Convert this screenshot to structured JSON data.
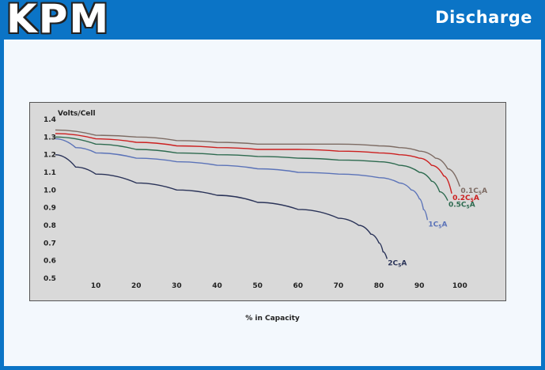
{
  "header": {
    "logo": "KPM",
    "title": "Discharge"
  },
  "chart_data": {
    "type": "line",
    "ylabel": "Volts/Cell",
    "xlabel": "% in Capacity",
    "y_ticks": [
      "1.4",
      "1.3",
      "1.2",
      "1.1",
      "1.0",
      "0.9",
      "0.8",
      "0.7",
      "0.6",
      "0.5"
    ],
    "x_ticks": [
      "10",
      "20",
      "30",
      "40",
      "50",
      "60",
      "70",
      "80",
      "90",
      "100"
    ],
    "xlim": [
      0,
      106
    ],
    "ylim": [
      0.5,
      1.4
    ],
    "series": [
      {
        "name": "0.1C5A",
        "label_main": "0.1C",
        "label_sub": "5",
        "label_tail": "A",
        "color": "#7d6b63",
        "x": [
          0,
          10,
          20,
          30,
          40,
          50,
          60,
          70,
          80,
          85,
          90,
          94,
          97,
          100
        ],
        "y": [
          1.34,
          1.31,
          1.3,
          1.28,
          1.27,
          1.26,
          1.26,
          1.26,
          1.25,
          1.24,
          1.22,
          1.18,
          1.12,
          1.02
        ]
      },
      {
        "name": "0.2C5A",
        "label_main": "0.2C",
        "label_sub": "5",
        "label_tail": "A",
        "color": "#cc1f1f",
        "x": [
          0,
          10,
          20,
          30,
          40,
          50,
          60,
          70,
          80,
          85,
          90,
          93,
          96,
          98
        ],
        "y": [
          1.32,
          1.29,
          1.27,
          1.25,
          1.24,
          1.23,
          1.23,
          1.22,
          1.21,
          1.2,
          1.18,
          1.14,
          1.08,
          0.98
        ]
      },
      {
        "name": "0.5C5A",
        "label_main": "0.5C",
        "label_sub": "5",
        "label_tail": "A",
        "color": "#2d6a4f",
        "x": [
          0,
          10,
          20,
          30,
          40,
          50,
          60,
          70,
          80,
          85,
          90,
          93,
          95,
          97
        ],
        "y": [
          1.3,
          1.26,
          1.23,
          1.21,
          1.2,
          1.19,
          1.18,
          1.17,
          1.16,
          1.14,
          1.1,
          1.05,
          0.99,
          0.94
        ]
      },
      {
        "name": "1C5A",
        "label_main": "1C",
        "label_sub": "5",
        "label_tail": "A",
        "color": "#5b73b8",
        "x": [
          0,
          5,
          10,
          20,
          30,
          40,
          50,
          60,
          70,
          80,
          85,
          88,
          90,
          91,
          92
        ],
        "y": [
          1.29,
          1.24,
          1.21,
          1.18,
          1.16,
          1.14,
          1.12,
          1.1,
          1.09,
          1.07,
          1.04,
          1.0,
          0.95,
          0.89,
          0.83
        ]
      },
      {
        "name": "2C5A",
        "label_main": "2C",
        "label_sub": "5",
        "label_tail": "A",
        "color": "#2a3358",
        "x": [
          0,
          5,
          10,
          20,
          30,
          40,
          50,
          60,
          70,
          75,
          78,
          80,
          81,
          82
        ],
        "y": [
          1.2,
          1.13,
          1.09,
          1.04,
          1.0,
          0.97,
          0.93,
          0.89,
          0.84,
          0.8,
          0.75,
          0.7,
          0.65,
          0.61
        ]
      }
    ]
  }
}
